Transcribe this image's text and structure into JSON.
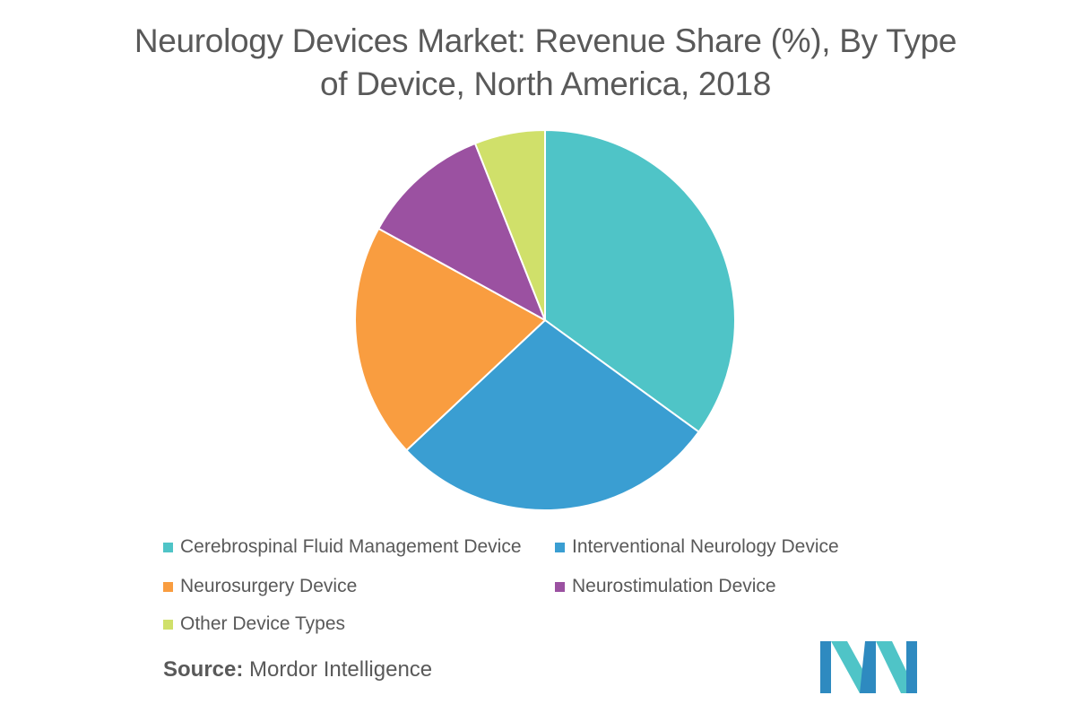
{
  "title_lines": [
    "Neurology Devices Market: Revenue Share (%), By Type",
    "of Device, North America, 2018"
  ],
  "chart_data": {
    "type": "pie",
    "title": "Neurology Devices Market: Revenue Share (%), By Type of Device, North America, 2018",
    "categories": [
      "Cerebrospinal Fluid Management Device",
      "Interventional Neurology Device",
      "Neurosurgery Device",
      "Neurostimulation Device",
      "Other Device Types"
    ],
    "values": [
      35,
      28,
      20,
      11,
      6
    ],
    "colors": [
      "#4fc4c7",
      "#3a9ed2",
      "#f99d40",
      "#9b51a1",
      "#d0e06a"
    ],
    "legend_position": "bottom",
    "start_angle_deg": 0,
    "direction": "clockwise"
  },
  "source": {
    "label": "Source:",
    "text": " Mordor Intelligence"
  },
  "logo": {
    "colors": [
      "#2e8ac0",
      "#4fc4c7"
    ]
  }
}
